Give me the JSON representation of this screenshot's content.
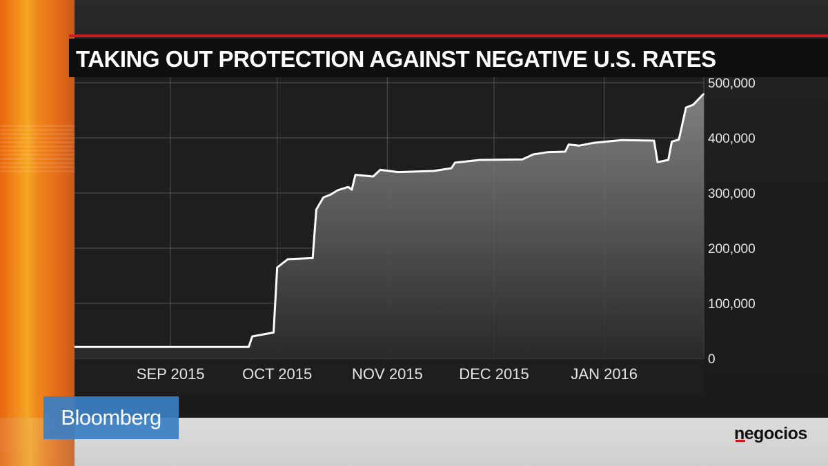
{
  "header": {
    "title": "TAKING OUT PROTECTION AGAINST NEGATIVE U.S. RATES"
  },
  "branding": {
    "broadcaster": "Bloomberg",
    "publisher": "negocios"
  },
  "colors": {
    "accent_red": "#c61f1f",
    "brand_blue": "#3b7fc4",
    "line": "#ffffff",
    "plot_bg": "#1e1e1e",
    "grid": "#4a4a4a"
  },
  "chart_data": {
    "type": "area",
    "title": "TAKING OUT PROTECTION AGAINST NEGATIVE U.S. RATES",
    "xlabel": "",
    "ylabel": "",
    "ylim": [
      0,
      500000
    ],
    "xlim": [
      "2015-08-05",
      "2016-01-29"
    ],
    "yticks": [
      0,
      100000,
      200000,
      300000,
      400000,
      500000
    ],
    "ytick_labels": [
      "0",
      "100,000",
      "200,000",
      "300,000",
      "400,000",
      "500,000"
    ],
    "xticks": [
      "2015-09-01",
      "2015-10-01",
      "2015-11-01",
      "2015-12-01",
      "2016-01-01"
    ],
    "xtick_labels": [
      "SEP 2015",
      "OCT 2015",
      "NOV 2015",
      "DEC 2015",
      "JAN 2016"
    ],
    "grid": true,
    "legend": "none",
    "y_axis_side": "right",
    "series": [
      {
        "values": [
          [
            "2015-08-05",
            21000
          ],
          [
            "2015-09-23",
            21000
          ],
          [
            "2015-09-24",
            40000
          ],
          [
            "2015-09-30",
            47000
          ],
          [
            "2015-10-01",
            165000
          ],
          [
            "2015-10-04",
            180000
          ],
          [
            "2015-10-11",
            182000
          ],
          [
            "2015-10-12",
            270000
          ],
          [
            "2015-10-14",
            292000
          ],
          [
            "2015-10-16",
            297000
          ],
          [
            "2015-10-18",
            305000
          ],
          [
            "2015-10-21",
            311000
          ],
          [
            "2015-10-22",
            306000
          ],
          [
            "2015-10-23",
            333000
          ],
          [
            "2015-10-28",
            330000
          ],
          [
            "2015-10-30",
            342000
          ],
          [
            "2015-11-04",
            338000
          ],
          [
            "2015-11-14",
            340000
          ],
          [
            "2015-11-19",
            345000
          ],
          [
            "2015-11-20",
            355000
          ],
          [
            "2015-11-27",
            360000
          ],
          [
            "2015-12-09",
            361000
          ],
          [
            "2015-12-12",
            370000
          ],
          [
            "2015-12-16",
            374000
          ],
          [
            "2015-12-21",
            375000
          ],
          [
            "2015-12-22",
            388000
          ],
          [
            "2015-12-25",
            386000
          ],
          [
            "2015-12-29",
            391000
          ],
          [
            "2016-01-06",
            396000
          ],
          [
            "2016-01-15",
            395000
          ],
          [
            "2016-01-16",
            356000
          ],
          [
            "2016-01-19",
            360000
          ],
          [
            "2016-01-20",
            393000
          ],
          [
            "2016-01-22",
            397000
          ],
          [
            "2016-01-24",
            455000
          ],
          [
            "2016-01-26",
            460000
          ],
          [
            "2016-01-29",
            480000
          ]
        ]
      }
    ]
  }
}
